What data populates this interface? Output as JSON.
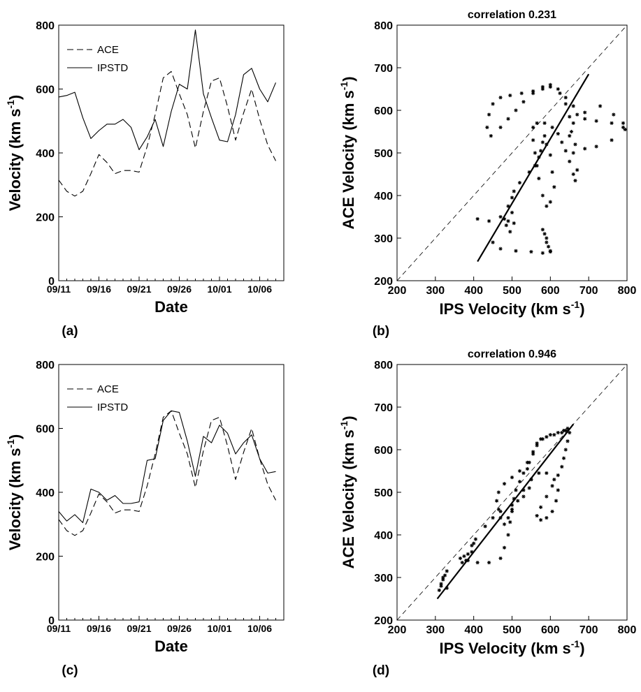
{
  "panels": [
    {
      "id": "a",
      "label": "(a)"
    },
    {
      "id": "b",
      "label": "(b)"
    },
    {
      "id": "c",
      "label": "(c)"
    },
    {
      "id": "d",
      "label": "(d)"
    }
  ],
  "chart_data": [
    {
      "panel": "(a)",
      "type": "line",
      "xlabel": "Date",
      "ylabel": "Velocity (km s",
      "ylabel_sup": "-1",
      "ylabel_end": ")",
      "xlim": [
        0,
        28
      ],
      "ylim": [
        0,
        800
      ],
      "x_ticks": [
        0,
        5,
        10,
        15,
        20,
        25
      ],
      "x_tick_labels": [
        "09/11",
        "09/16",
        "09/21",
        "09/26",
        "10/01",
        "10/06"
      ],
      "y_ticks": [
        0,
        200,
        400,
        600,
        800
      ],
      "grid": false,
      "legend_position": "top-left",
      "series": [
        {
          "name": "ACE",
          "style": "dashed",
          "x": [
            0,
            1,
            2,
            3,
            4,
            5,
            6,
            7,
            8,
            9,
            10,
            11,
            12,
            13,
            14,
            15,
            16,
            17,
            18,
            19,
            20,
            21,
            22,
            23,
            24,
            25,
            26,
            27
          ],
          "values": [
            315,
            280,
            265,
            280,
            335,
            395,
            370,
            335,
            345,
            345,
            340,
            420,
            520,
            635,
            655,
            585,
            520,
            415,
            530,
            625,
            635,
            545,
            440,
            525,
            600,
            505,
            425,
            375
          ]
        },
        {
          "name": "IPSTD",
          "style": "solid",
          "x": [
            0,
            1,
            2,
            3,
            4,
            5,
            6,
            7,
            8,
            9,
            10,
            11,
            12,
            13,
            14,
            15,
            16,
            17,
            18,
            19,
            20,
            21,
            22,
            23,
            24,
            25,
            26,
            27
          ],
          "values": [
            575,
            580,
            590,
            510,
            445,
            470,
            490,
            490,
            505,
            480,
            410,
            450,
            505,
            420,
            530,
            615,
            600,
            785,
            585,
            510,
            440,
            435,
            520,
            645,
            665,
            600,
            560,
            620
          ]
        }
      ]
    },
    {
      "panel": "(b)",
      "type": "scatter",
      "title": "correlation 0.231",
      "xlabel": "IPS Velocity (km s",
      "xlabel_sup": "-1",
      "xlabel_end": ")",
      "ylabel": "ACE Velocity (km s",
      "ylabel_sup": "-1",
      "ylabel_end": ")",
      "xlim": [
        200,
        800
      ],
      "ylim": [
        200,
        800
      ],
      "ticks": [
        200,
        300,
        400,
        500,
        600,
        700,
        800
      ],
      "grid": false,
      "reference_line": [
        [
          200,
          200
        ],
        [
          800,
          800
        ]
      ],
      "fit_line": [
        [
          410,
          245
        ],
        [
          700,
          685
        ]
      ],
      "path_points": [
        [
          410,
          345
        ],
        [
          440,
          340
        ],
        [
          470,
          350
        ],
        [
          490,
          340
        ],
        [
          505,
          335
        ],
        [
          500,
          360
        ],
        [
          485,
          330
        ],
        [
          495,
          315
        ],
        [
          480,
          345
        ],
        [
          490,
          375
        ],
        [
          500,
          395
        ],
        [
          505,
          410
        ],
        [
          520,
          430
        ],
        [
          545,
          455
        ],
        [
          560,
          470
        ],
        [
          570,
          490
        ],
        [
          575,
          505
        ],
        [
          580,
          525
        ],
        [
          585,
          540
        ],
        [
          590,
          520
        ],
        [
          600,
          495
        ],
        [
          605,
          455
        ],
        [
          610,
          420
        ],
        [
          600,
          385
        ],
        [
          590,
          375
        ],
        [
          580,
          400
        ],
        [
          570,
          440
        ],
        [
          565,
          470
        ],
        [
          560,
          500
        ],
        [
          555,
          530
        ],
        [
          555,
          560
        ],
        [
          565,
          570
        ],
        [
          585,
          570
        ],
        [
          605,
          560
        ],
        [
          620,
          545
        ],
        [
          630,
          525
        ],
        [
          640,
          505
        ],
        [
          650,
          480
        ],
        [
          660,
          450
        ],
        [
          665,
          435
        ],
        [
          670,
          460
        ],
        [
          660,
          500
        ],
        [
          650,
          540
        ],
        [
          660,
          570
        ],
        [
          690,
          595
        ],
        [
          730,
          610
        ],
        [
          765,
          590
        ],
        [
          790,
          570
        ],
        [
          795,
          555
        ],
        [
          760,
          530
        ],
        [
          720,
          515
        ],
        [
          690,
          510
        ],
        [
          665,
          520
        ],
        [
          655,
          550
        ],
        [
          650,
          585
        ],
        [
          640,
          615
        ],
        [
          625,
          640
        ],
        [
          600,
          655
        ],
        [
          580,
          655
        ],
        [
          555,
          645
        ],
        [
          525,
          640
        ],
        [
          495,
          635
        ],
        [
          470,
          630
        ],
        [
          450,
          615
        ],
        [
          440,
          590
        ],
        [
          435,
          560
        ],
        [
          445,
          540
        ],
        [
          470,
          560
        ],
        [
          490,
          580
        ],
        [
          510,
          600
        ],
        [
          530,
          620
        ],
        [
          555,
          640
        ],
        [
          580,
          650
        ],
        [
          600,
          660
        ],
        [
          620,
          650
        ],
        [
          640,
          630
        ],
        [
          660,
          610
        ],
        [
          670,
          590
        ],
        [
          690,
          580
        ],
        [
          720,
          575
        ],
        [
          760,
          570
        ],
        [
          790,
          560
        ],
        [
          450,
          290
        ],
        [
          470,
          275
        ],
        [
          510,
          270
        ],
        [
          550,
          268
        ],
        [
          580,
          265
        ],
        [
          600,
          270
        ],
        [
          590,
          290
        ],
        [
          585,
          310
        ],
        [
          580,
          320
        ],
        [
          590,
          300
        ],
        [
          595,
          280
        ],
        [
          600,
          268
        ]
      ]
    },
    {
      "panel": "(c)",
      "type": "line",
      "xlabel": "Date",
      "ylabel": "Velocity (km s",
      "ylabel_sup": "-1",
      "ylabel_end": ")",
      "xlim": [
        0,
        28
      ],
      "ylim": [
        0,
        800
      ],
      "x_ticks": [
        0,
        5,
        10,
        15,
        20,
        25
      ],
      "x_tick_labels": [
        "09/11",
        "09/16",
        "09/21",
        "09/26",
        "10/01",
        "10/06"
      ],
      "y_ticks": [
        0,
        200,
        400,
        600,
        800
      ],
      "grid": false,
      "legend_position": "top-left",
      "series": [
        {
          "name": "ACE",
          "style": "dashed",
          "x": [
            0,
            1,
            2,
            3,
            4,
            5,
            6,
            7,
            8,
            9,
            10,
            11,
            12,
            13,
            14,
            15,
            16,
            17,
            18,
            19,
            20,
            21,
            22,
            23,
            24,
            25,
            26,
            27
          ],
          "values": [
            315,
            280,
            265,
            280,
            335,
            395,
            370,
            335,
            345,
            345,
            340,
            420,
            520,
            635,
            655,
            585,
            520,
            415,
            530,
            625,
            635,
            545,
            440,
            525,
            600,
            505,
            425,
            375
          ]
        },
        {
          "name": "IPSTD",
          "style": "solid",
          "x": [
            0,
            1,
            2,
            3,
            4,
            5,
            6,
            7,
            8,
            9,
            10,
            11,
            12,
            13,
            14,
            15,
            16,
            17,
            18,
            19,
            20,
            21,
            22,
            23,
            24,
            25,
            26,
            27
          ],
          "values": [
            340,
            310,
            330,
            305,
            410,
            400,
            375,
            390,
            365,
            365,
            370,
            500,
            505,
            625,
            655,
            650,
            560,
            450,
            575,
            555,
            610,
            585,
            520,
            555,
            580,
            505,
            460,
            465
          ]
        }
      ]
    },
    {
      "panel": "(d)",
      "type": "scatter",
      "title": "correlation 0.946",
      "xlabel": "IPS Velocity (km s",
      "xlabel_sup": "-1",
      "xlabel_end": ")",
      "ylabel": "ACE Velocity (km s",
      "ylabel_sup": "-1",
      "ylabel_end": ")",
      "xlim": [
        200,
        800
      ],
      "ylim": [
        200,
        800
      ],
      "ticks": [
        200,
        300,
        400,
        500,
        600,
        700,
        800
      ],
      "grid": false,
      "reference_line": [
        [
          200,
          200
        ],
        [
          800,
          800
        ]
      ],
      "fit_line": [
        [
          305,
          250
        ],
        [
          660,
          660
        ]
      ],
      "path_points": [
        [
          310,
          270
        ],
        [
          315,
          280
        ],
        [
          320,
          295
        ],
        [
          325,
          305
        ],
        [
          330,
          315
        ],
        [
          320,
          300
        ],
        [
          315,
          285
        ],
        [
          330,
          275
        ],
        [
          365,
          345
        ],
        [
          370,
          335
        ],
        [
          375,
          350
        ],
        [
          385,
          340
        ],
        [
          395,
          360
        ],
        [
          400,
          380
        ],
        [
          405,
          390
        ],
        [
          395,
          375
        ],
        [
          385,
          355
        ],
        [
          380,
          340
        ],
        [
          410,
          335
        ],
        [
          440,
          335
        ],
        [
          470,
          345
        ],
        [
          480,
          370
        ],
        [
          490,
          400
        ],
        [
          495,
          430
        ],
        [
          500,
          460
        ],
        [
          505,
          485
        ],
        [
          510,
          505
        ],
        [
          520,
          525
        ],
        [
          530,
          545
        ],
        [
          540,
          555
        ],
        [
          545,
          570
        ],
        [
          555,
          590
        ],
        [
          565,
          610
        ],
        [
          580,
          625
        ],
        [
          600,
          635
        ],
        [
          620,
          640
        ],
        [
          635,
          645
        ],
        [
          645,
          650
        ],
        [
          650,
          640
        ],
        [
          645,
          620
        ],
        [
          640,
          600
        ],
        [
          635,
          580
        ],
        [
          630,
          560
        ],
        [
          620,
          540
        ],
        [
          605,
          515
        ],
        [
          590,
          490
        ],
        [
          575,
          465
        ],
        [
          565,
          445
        ],
        [
          575,
          435
        ],
        [
          590,
          440
        ],
        [
          605,
          455
        ],
        [
          615,
          480
        ],
        [
          620,
          505
        ],
        [
          610,
          530
        ],
        [
          590,
          545
        ],
        [
          570,
          545
        ],
        [
          550,
          530
        ],
        [
          530,
          505
        ],
        [
          515,
          480
        ],
        [
          500,
          455
        ],
        [
          490,
          440
        ],
        [
          480,
          425
        ],
        [
          470,
          440
        ],
        [
          465,
          460
        ],
        [
          460,
          480
        ],
        [
          465,
          500
        ],
        [
          480,
          520
        ],
        [
          500,
          535
        ],
        [
          520,
          550
        ],
        [
          540,
          570
        ],
        [
          555,
          595
        ],
        [
          565,
          615
        ],
        [
          575,
          625
        ],
        [
          590,
          630
        ],
        [
          610,
          635
        ],
        [
          630,
          640
        ],
        [
          640,
          645
        ],
        [
          430,
          420
        ],
        [
          450,
          440
        ],
        [
          470,
          455
        ],
        [
          500,
          470
        ],
        [
          530,
          490
        ],
        [
          545,
          510
        ],
        [
          550,
          530
        ]
      ]
    }
  ]
}
